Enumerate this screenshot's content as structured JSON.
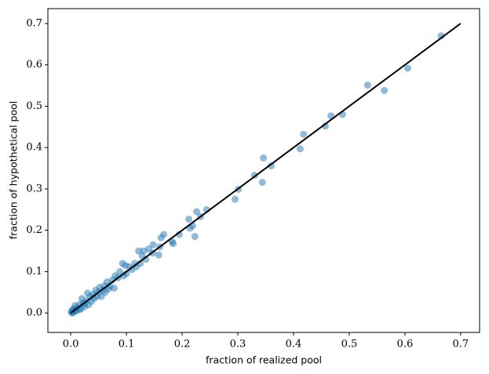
{
  "chart_data": {
    "type": "scatter",
    "x_label": "fraction of realized pool",
    "y_label": "fraction of hypothetical pool",
    "xlim": [
      -0.041,
      0.734
    ],
    "ylim": [
      -0.047,
      0.736
    ],
    "xticks": [
      {
        "value": 0,
        "label": "0.0"
      },
      0.1,
      0.2,
      0.3,
      0.4,
      0.5,
      0.6,
      0.7
    ],
    "yticks": [
      {
        "value": 0,
        "label": "0.0"
      },
      0.1,
      0.2,
      0.3,
      0.4,
      0.5,
      0.6,
      0.7
    ],
    "color": "#1f77b4",
    "alpha": 0.5,
    "x": [
      0.665,
      0.605,
      0.563,
      0.533,
      0.488,
      0.467,
      0.457,
      0.418,
      0.412,
      0.36,
      0.346,
      0.344,
      0.33,
      0.301,
      0.295,
      0.244,
      0.233,
      0.226,
      0.223,
      0.219,
      0.214,
      0.212,
      0.195,
      0.184,
      0.182,
      0.167,
      0.162,
      0.16,
      0.158,
      0.148,
      0.147,
      0.14,
      0.131,
      0.128,
      0.125,
      0.122,
      0.115,
      0.11,
      0.105,
      0.098,
      0.095,
      0.093,
      0.088,
      0.08,
      0.078,
      0.075,
      0.07,
      0.065,
      0.062,
      0.06,
      0.055,
      0.052,
      0.05,
      0.045,
      0.042,
      0.04,
      0.035,
      0.032,
      0.03,
      0.028,
      0.025,
      0.022,
      0.02,
      0.018,
      0.015,
      0.012,
      0.01,
      0.008,
      0.006,
      0.004,
      0.002,
      0.001,
      0.003,
      0.005,
      0.009,
      0.016,
      0.024,
      0.037,
      0.047,
      0.058,
      0.068,
      0.085,
      0.1,
      0.118,
      0.135
    ],
    "y": [
      0.67,
      0.592,
      0.538,
      0.551,
      0.48,
      0.477,
      0.452,
      0.432,
      0.397,
      0.356,
      0.375,
      0.316,
      0.333,
      0.299,
      0.275,
      0.25,
      0.233,
      0.245,
      0.185,
      0.211,
      0.205,
      0.227,
      0.19,
      0.168,
      0.172,
      0.19,
      0.182,
      0.16,
      0.14,
      0.165,
      0.145,
      0.155,
      0.15,
      0.138,
      0.12,
      0.15,
      0.12,
      0.105,
      0.112,
      0.115,
      0.09,
      0.12,
      0.1,
      0.09,
      0.06,
      0.08,
      0.065,
      0.075,
      0.05,
      0.065,
      0.04,
      0.062,
      0.05,
      0.055,
      0.035,
      0.045,
      0.04,
      0.02,
      0.048,
      0.03,
      0.015,
      0.025,
      0.035,
      0.01,
      0.02,
      0.012,
      0.005,
      0.018,
      0.003,
      0.008,
      0.001,
      0.004,
      0.0,
      0.01,
      0.007,
      0.008,
      0.022,
      0.028,
      0.04,
      0.055,
      0.058,
      0.085,
      0.095,
      0.112,
      0.13
    ],
    "reference_line": {
      "x": [
        0,
        0.7
      ],
      "y": [
        0,
        0.7
      ],
      "color": "#000000"
    }
  }
}
